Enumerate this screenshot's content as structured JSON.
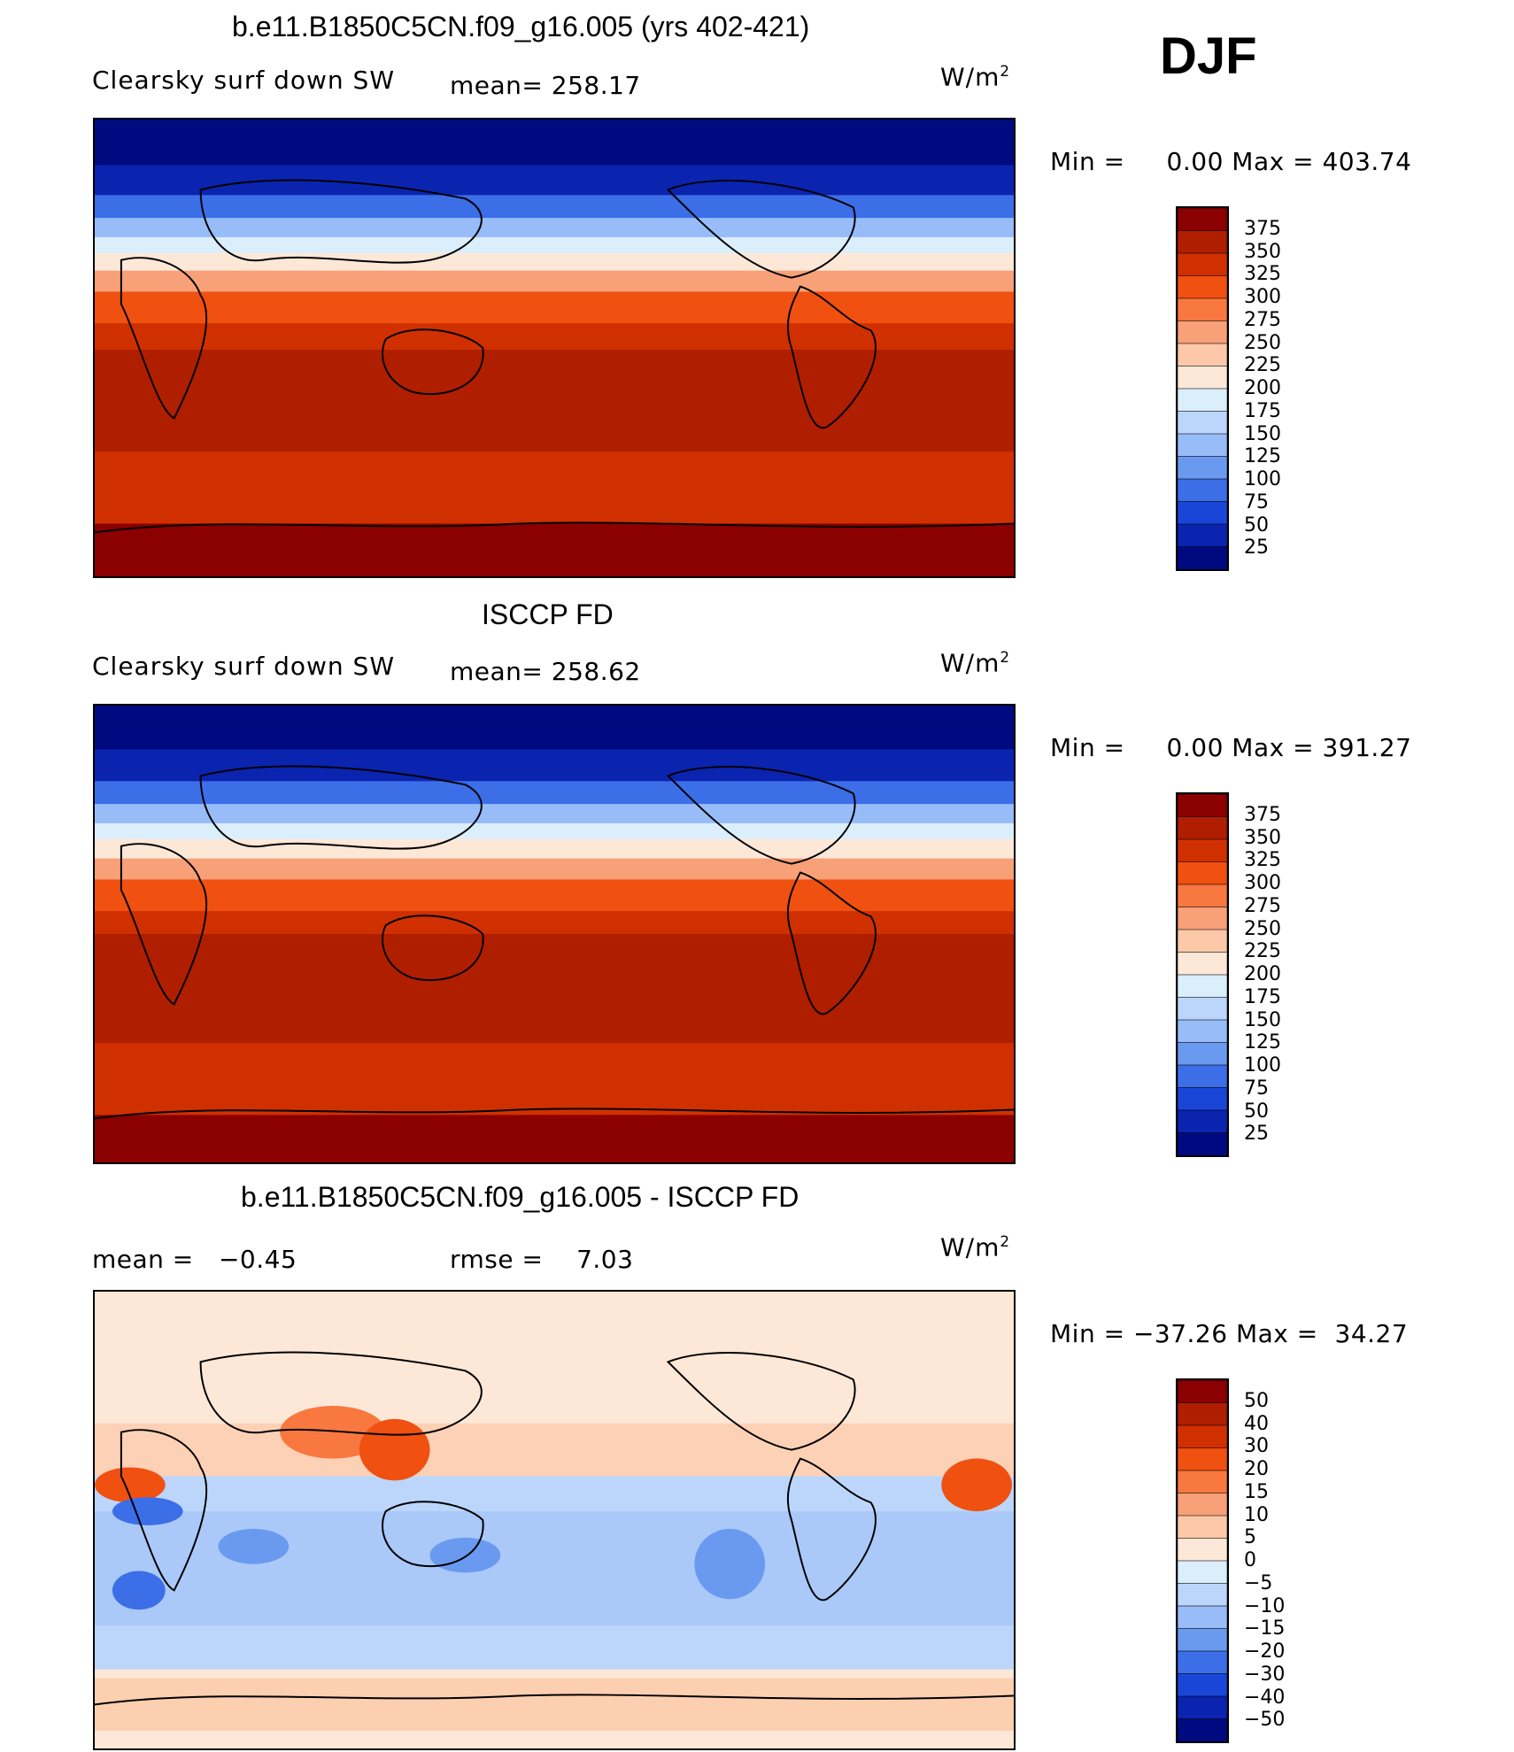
{
  "season": "DJF",
  "panels": [
    {
      "title": "b.e11.B1850C5CN.f09_g16.005 (yrs 402-421)",
      "left_label": "Clearsky surf down SW",
      "stat_text": "mean= 258.17",
      "stat2_text": "",
      "units_base": "W/m",
      "units_exp": "2",
      "minmax_text": "Min =     0.00 Max = 403.74"
    },
    {
      "title": "ISCCP FD",
      "left_label": "Clearsky surf down SW",
      "stat_text": "mean= 258.62",
      "stat2_text": "",
      "units_base": "W/m",
      "units_exp": "2",
      "minmax_text": "Min =     0.00 Max = 391.27"
    },
    {
      "title": "b.e11.B1850C5CN.f09_g16.005 - ISCCP FD",
      "left_label": "mean =   −0.45",
      "stat_text": "rmse =    7.03",
      "stat2_text": "",
      "units_base": "W/m",
      "units_exp": "2",
      "minmax_text": "Min = −37.26 Max =  34.27"
    }
  ],
  "colorbars": {
    "absolute": {
      "labels": [
        "375",
        "350",
        "325",
        "300",
        "275",
        "250",
        "225",
        "200",
        "175",
        "150",
        "125",
        "100",
        "75",
        "50",
        "25"
      ],
      "colors": [
        "#8b0000",
        "#b01e00",
        "#d03000",
        "#f05010",
        "#f87840",
        "#f8a078",
        "#fcc8a8",
        "#fde8d8",
        "#dbeefc",
        "#bcd6fb",
        "#98bcf8",
        "#6a9af0",
        "#3c6ee8",
        "#1a46d8",
        "#0a24b0",
        "#000a80"
      ]
    },
    "difference": {
      "labels": [
        "50",
        "40",
        "30",
        "20",
        "15",
        "10",
        "5",
        "0",
        "−5",
        "−10",
        "−15",
        "−20",
        "−30",
        "−40",
        "−50"
      ],
      "colors": [
        "#8b0000",
        "#b01e00",
        "#d03000",
        "#f05010",
        "#f87840",
        "#f8a078",
        "#fcc8a8",
        "#fde8d8",
        "#dbeefc",
        "#bcd6fb",
        "#98bcf8",
        "#6a9af0",
        "#3c6ee8",
        "#1a46d8",
        "#0a24b0",
        "#000a80"
      ]
    }
  },
  "chart_data": [
    {
      "type": "heatmap",
      "title": "b.e11.B1850C5CN.f09_g16.005 (yrs 402-421)",
      "variable": "Clearsky surf down SW",
      "units": "W/m2",
      "season": "DJF",
      "mean": 258.17,
      "min": 0.0,
      "max": 403.74,
      "contour_levels": [
        25,
        50,
        75,
        100,
        125,
        150,
        175,
        200,
        225,
        250,
        275,
        300,
        325,
        350,
        375
      ]
    },
    {
      "type": "heatmap",
      "title": "ISCCP FD",
      "variable": "Clearsky surf down SW",
      "units": "W/m2",
      "season": "DJF",
      "mean": 258.62,
      "min": 0.0,
      "max": 391.27,
      "contour_levels": [
        25,
        50,
        75,
        100,
        125,
        150,
        175,
        200,
        225,
        250,
        275,
        300,
        325,
        350,
        375
      ]
    },
    {
      "type": "heatmap",
      "title": "b.e11.B1850C5CN.f09_g16.005 - ISCCP FD",
      "units": "W/m2",
      "season": "DJF",
      "mean": -0.45,
      "rmse": 7.03,
      "min": -37.26,
      "max": 34.27,
      "contour_levels": [
        -50,
        -40,
        -30,
        -20,
        -15,
        -10,
        -5,
        0,
        5,
        10,
        15,
        20,
        30,
        40,
        50
      ]
    }
  ]
}
